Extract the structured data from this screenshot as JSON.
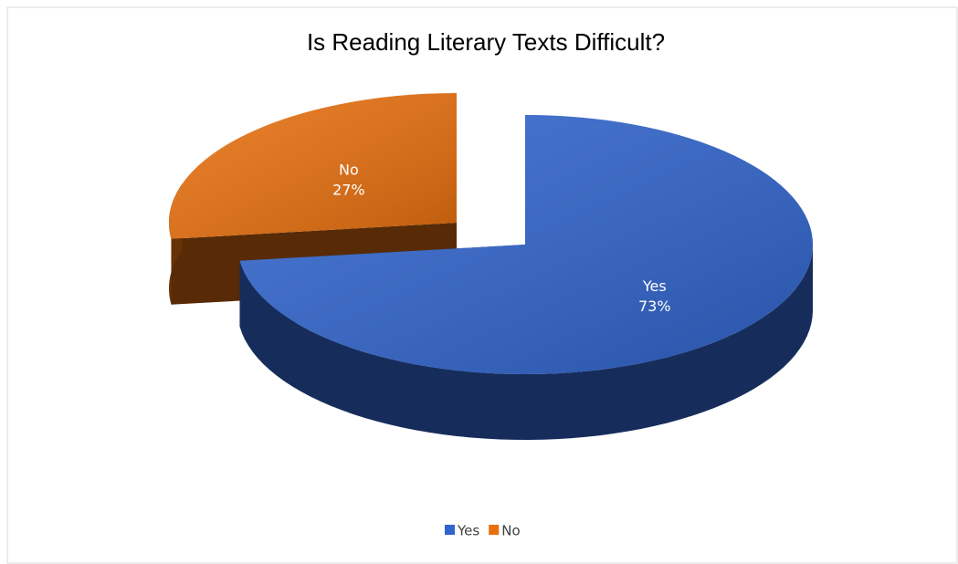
{
  "chart_data": {
    "type": "pie",
    "title": "Is Reading Literary Texts Difficult?",
    "categories": [
      "Yes",
      "No"
    ],
    "values": [
      73,
      27
    ],
    "value_labels": [
      "73%",
      "27%"
    ],
    "colors": [
      "#3064cc",
      "#e8700f"
    ],
    "legend": "bottom"
  }
}
